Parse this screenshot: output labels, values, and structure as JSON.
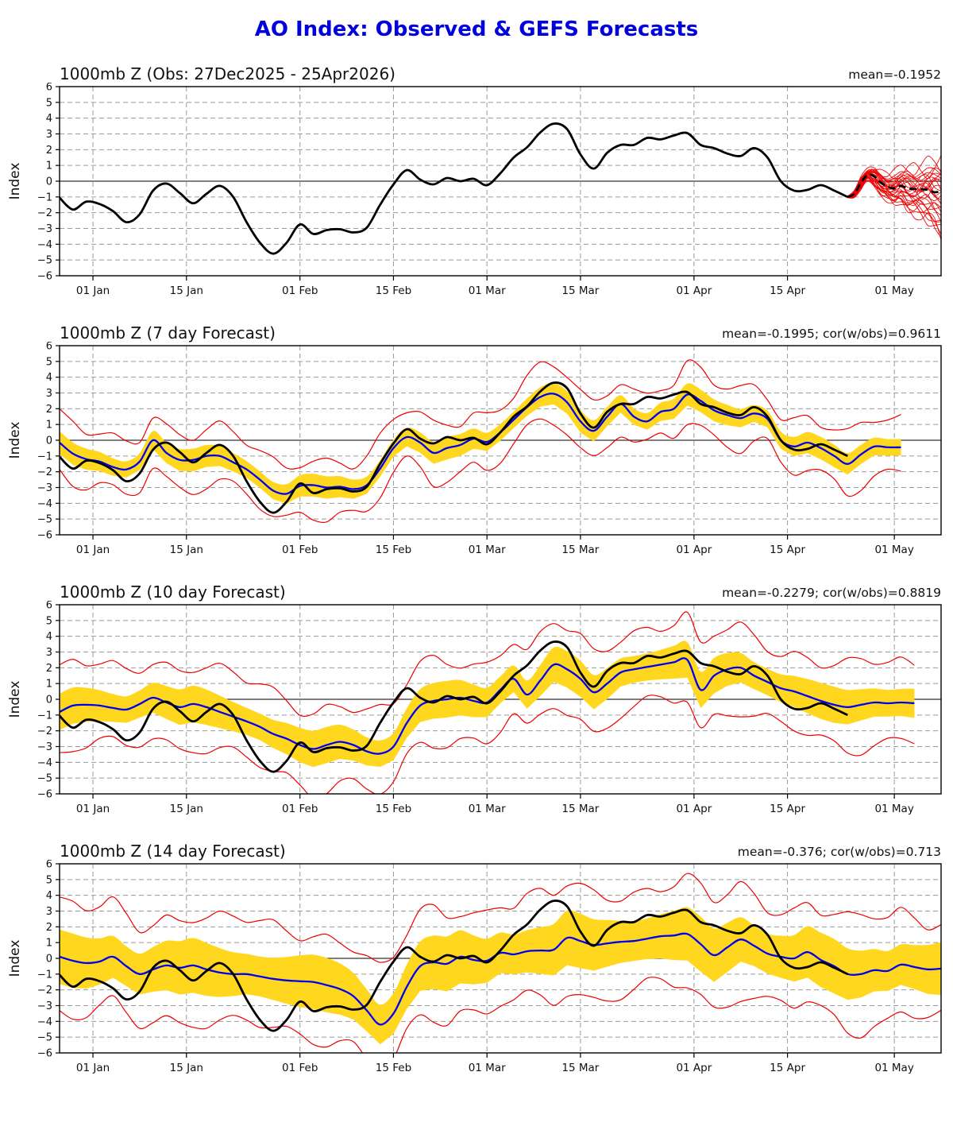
{
  "title": "AO Index: Observed & GEFS Forecasts",
  "title_color": "#0000dd",
  "chart_data": {
    "type": "line",
    "ylabel": "Index",
    "y_domain": [
      -6,
      6
    ],
    "x_domain_days": [
      0,
      132
    ],
    "x_start_date": "27Dec2025",
    "obs_end_date": "25Apr2026",
    "x_ticks": [
      {
        "day": 5,
        "label": "01 Jan"
      },
      {
        "day": 19,
        "label": "15 Jan"
      },
      {
        "day": 36,
        "label": "01 Feb"
      },
      {
        "day": 50,
        "label": "15 Feb"
      },
      {
        "day": 64,
        "label": "01 Mar"
      },
      {
        "day": 78,
        "label": "15 Mar"
      },
      {
        "day": 95,
        "label": "01 Apr"
      },
      {
        "day": 109,
        "label": "15 Apr"
      },
      {
        "day": 125,
        "label": "01 May"
      }
    ],
    "grid": true,
    "colors": {
      "observed": "#000000",
      "forecast_mean": "#0000ee",
      "ensemble_red": "#ee0000",
      "band_yellow": "#ffd71e",
      "grid": "#9a9a9a",
      "zero_line": "#333333",
      "frame": "#000000"
    },
    "obs": {
      "start_day": 0,
      "step_days": 2,
      "values": [
        -1.05,
        -1.8,
        -1.3,
        -1.45,
        -1.9,
        -2.6,
        -2.1,
        -0.6,
        -0.15,
        -0.75,
        -1.4,
        -0.8,
        -0.3,
        -1.0,
        -2.6,
        -3.9,
        -4.6,
        -3.9,
        -2.75,
        -3.35,
        -3.1,
        -3.05,
        -3.25,
        -2.95,
        -1.5,
        -0.2,
        0.7,
        0.1,
        -0.2,
        0.2,
        0.0,
        0.15,
        -0.25,
        0.5,
        1.5,
        2.15,
        3.1,
        3.65,
        3.3,
        1.7,
        0.8,
        1.8,
        2.3,
        2.3,
        2.75,
        2.65,
        2.9,
        3.05,
        2.3,
        2.1,
        1.75,
        1.6,
        2.1,
        1.5,
        0.0,
        -0.6,
        -0.55,
        -0.25,
        -0.6,
        -1.0
      ]
    },
    "panels": [
      {
        "title": "1000mb Z (Obs: 27Dec2025 - 25Apr2026)",
        "stats": "mean=-0.1952",
        "kind": "obs_with_ensemble",
        "ensemble": {
          "start_day": 118,
          "step_days": 1,
          "members": 28,
          "mean": [
            -1.0,
            -0.8,
            -0.1,
            0.4,
            0.3,
            -0.1,
            -0.35,
            -0.45,
            -0.3,
            -0.45,
            -0.5,
            -0.5,
            -0.55,
            -0.7,
            -0.65
          ],
          "upper": [
            -0.95,
            -0.6,
            0.3,
            0.7,
            0.8,
            0.6,
            0.5,
            0.55,
            0.7,
            0.85,
            0.9,
            1.0,
            1.0,
            1.1,
            1.2
          ],
          "lower": [
            -1.05,
            -1.0,
            -0.5,
            0.1,
            -0.3,
            -0.8,
            -1.1,
            -1.4,
            -1.3,
            -1.7,
            -1.9,
            -2.2,
            -2.5,
            -2.8,
            -3.4
          ]
        }
      },
      {
        "title": "1000mb Z (7 day Forecast)",
        "stats": "mean=-0.1995; cor(w/obs)=0.9611",
        "kind": "forecast",
        "forecast": {
          "start_day": 0,
          "step_days": 2,
          "end_day": 126,
          "band_half_width": 0.62,
          "red_half_width": 1.7,
          "values": [
            -0.15,
            -0.85,
            -1.2,
            -1.35,
            -1.7,
            -1.85,
            -1.35,
            0.0,
            -0.8,
            -1.25,
            -1.25,
            -1.0,
            -1.0,
            -1.4,
            -1.85,
            -2.5,
            -3.2,
            -3.4,
            -2.9,
            -2.85,
            -3.0,
            -2.95,
            -3.1,
            -2.85,
            -1.8,
            -0.5,
            0.2,
            -0.15,
            -0.8,
            -0.5,
            -0.3,
            0.1,
            -0.1,
            0.5,
            1.3,
            2.1,
            2.75,
            2.95,
            2.4,
            1.2,
            0.6,
            1.5,
            2.3,
            1.5,
            1.2,
            1.8,
            2.0,
            2.9,
            2.5,
            1.9,
            1.6,
            1.4,
            1.7,
            1.35,
            0.0,
            -0.4,
            -0.15,
            -0.5,
            -1.0,
            -1.5,
            -0.9,
            -0.4,
            -0.45,
            -0.45
          ]
        }
      },
      {
        "title": "1000mb Z (10 day Forecast)",
        "stats": "mean=-0.2279; cor(w/obs)=0.8819",
        "kind": "forecast",
        "forecast": {
          "start_day": 0,
          "step_days": 2,
          "end_day": 128,
          "band_half_width": 1.0,
          "red_half_width": 2.5,
          "values": [
            -0.8,
            -0.4,
            -0.35,
            -0.4,
            -0.55,
            -0.65,
            -0.3,
            0.1,
            -0.2,
            -0.5,
            -0.3,
            -0.5,
            -0.8,
            -1.1,
            -1.4,
            -1.75,
            -2.2,
            -2.5,
            -2.9,
            -3.15,
            -2.9,
            -2.7,
            -2.9,
            -3.3,
            -3.45,
            -3.0,
            -1.5,
            -0.4,
            -0.1,
            0.0,
            0.1,
            -0.1,
            -0.2,
            0.6,
            1.3,
            0.3,
            1.2,
            2.2,
            1.9,
            1.3,
            0.45,
            1.0,
            1.7,
            1.9,
            2.05,
            2.2,
            2.35,
            2.5,
            0.6,
            1.5,
            1.9,
            2.0,
            1.5,
            1.1,
            0.7,
            0.5,
            0.2,
            -0.1,
            -0.35,
            -0.5,
            -0.35,
            -0.2,
            -0.25,
            -0.2,
            -0.25
          ]
        }
      },
      {
        "title": "1000mb Z (14 day Forecast)",
        "stats": "mean=-0.376; cor(w/obs)=0.713",
        "kind": "forecast",
        "forecast": {
          "start_day": 0,
          "step_days": 2,
          "end_day": 132,
          "band_half_width": 1.5,
          "red_half_width": 3.25,
          "values": [
            0.1,
            -0.15,
            -0.3,
            -0.2,
            0.1,
            -0.5,
            -1.0,
            -0.7,
            -0.45,
            -0.6,
            -0.45,
            -0.7,
            -0.9,
            -1.0,
            -1.0,
            -1.15,
            -1.3,
            -1.4,
            -1.45,
            -1.5,
            -1.7,
            -1.95,
            -2.4,
            -3.3,
            -4.2,
            -3.5,
            -1.8,
            -0.5,
            -0.25,
            -0.35,
            0.1,
            -0.1,
            -0.15,
            0.35,
            0.25,
            0.45,
            0.5,
            0.55,
            1.3,
            1.1,
            0.85,
            0.95,
            1.05,
            1.1,
            1.25,
            1.4,
            1.45,
            1.55,
            0.9,
            0.2,
            0.7,
            1.2,
            0.8,
            0.3,
            0.1,
            0.0,
            0.4,
            -0.1,
            -0.5,
            -1.0,
            -1.0,
            -0.75,
            -0.8,
            -0.4,
            -0.55,
            -0.7,
            -0.65
          ]
        }
      }
    ]
  }
}
